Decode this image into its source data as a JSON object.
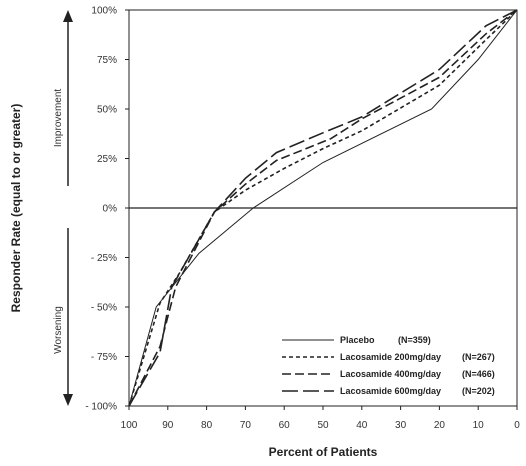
{
  "chart_data": {
    "type": "line",
    "xlabel": "Percent of Patients",
    "ylabel": "Responder Rate (equal to or greater)",
    "improvement_label": "Improvement",
    "worsening_label": "Worsening",
    "xlim": [
      100,
      0
    ],
    "ylim": [
      -100,
      100
    ],
    "x_ticks": [
      "100",
      "90",
      "80",
      "70",
      "60",
      "50",
      "40",
      "30",
      "20",
      "10",
      "0"
    ],
    "y_ticks": [
      "100%",
      "75%",
      "50%",
      "25%",
      "0%",
      "- 25%",
      "- 50%",
      "- 75%",
      "- 100%"
    ],
    "series": [
      {
        "name": "Placebo",
        "n_label": "(N=359)",
        "dash": "",
        "x": [
          100,
          93,
          82,
          68,
          50,
          22,
          10,
          0
        ],
        "y": [
          -100,
          -50,
          -23,
          0,
          23,
          50,
          75,
          100
        ]
      },
      {
        "name": "Lacosamide 200mg/day",
        "n_label": "(N=267)",
        "dash": "4,3",
        "x": [
          100,
          92,
          87,
          78,
          70,
          60,
          50,
          40,
          20,
          8,
          0
        ],
        "y": [
          -100,
          -48,
          -33,
          -2,
          9,
          20,
          30,
          39,
          62,
          85,
          100
        ]
      },
      {
        "name": "Lacosamide 400mg/day",
        "n_label": "(N=466)",
        "dash": "9,4",
        "x": [
          100,
          92,
          88,
          78,
          70,
          62,
          48,
          40,
          20,
          8,
          0
        ],
        "y": [
          -100,
          -70,
          -40,
          -2,
          12,
          24,
          35,
          45,
          66,
          88,
          100
        ]
      },
      {
        "name": "Lacosamide 600mg/day",
        "n_label": "(N=202)",
        "dash": "16,5",
        "x": [
          100,
          92,
          89,
          78,
          70,
          62,
          50,
          40,
          20,
          8,
          0
        ],
        "y": [
          -100,
          -73,
          -40,
          -2,
          15,
          28,
          38,
          46,
          70,
          92,
          100
        ]
      }
    ]
  }
}
